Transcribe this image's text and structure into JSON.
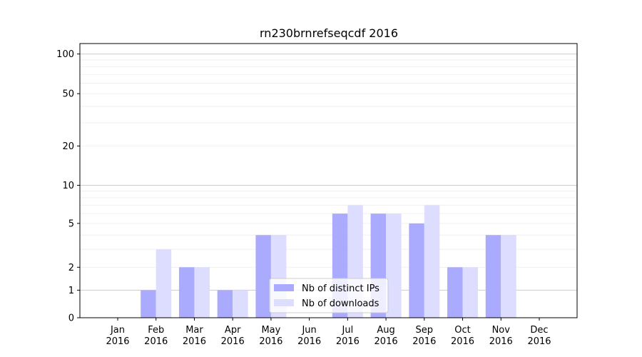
{
  "chart_data": {
    "type": "bar",
    "title": "rn230brnrefseqcdf 2016",
    "xlabel": "",
    "ylabel": "",
    "yscale": "symlog",
    "ylim": [
      0,
      120
    ],
    "yticks": [
      0,
      1,
      2,
      5,
      10,
      20,
      50,
      100
    ],
    "ytick_labels": [
      "0",
      "1",
      "2",
      "5",
      "10",
      "20",
      "50",
      "100"
    ],
    "grid": "horizontal",
    "legend_position": "lower-center",
    "categories": [
      "Jan\n2016",
      "Feb\n2016",
      "Mar\n2016",
      "Apr\n2016",
      "May\n2016",
      "Jun\n2016",
      "Jul\n2016",
      "Aug\n2016",
      "Sep\n2016",
      "Oct\n2016",
      "Nov\n2016",
      "Dec\n2016"
    ],
    "category_lines": [
      [
        "Jan",
        "2016"
      ],
      [
        "Feb",
        "2016"
      ],
      [
        "Mar",
        "2016"
      ],
      [
        "Apr",
        "2016"
      ],
      [
        "May",
        "2016"
      ],
      [
        "Jun",
        "2016"
      ],
      [
        "Jul",
        "2016"
      ],
      [
        "Aug",
        "2016"
      ],
      [
        "Sep",
        "2016"
      ],
      [
        "Oct",
        "2016"
      ],
      [
        "Nov",
        "2016"
      ],
      [
        "Dec",
        "2016"
      ]
    ],
    "series": [
      {
        "name": "Nb of distinct IPs",
        "color": "#aaaaff",
        "values": [
          0,
          1,
          2,
          1,
          4,
          0,
          6,
          6,
          5,
          2,
          4,
          0
        ]
      },
      {
        "name": "Nb of downloads",
        "color": "#ddddff",
        "values": [
          0,
          3,
          2,
          1,
          4,
          0,
          7,
          6,
          7,
          2,
          4,
          0
        ]
      }
    ]
  }
}
